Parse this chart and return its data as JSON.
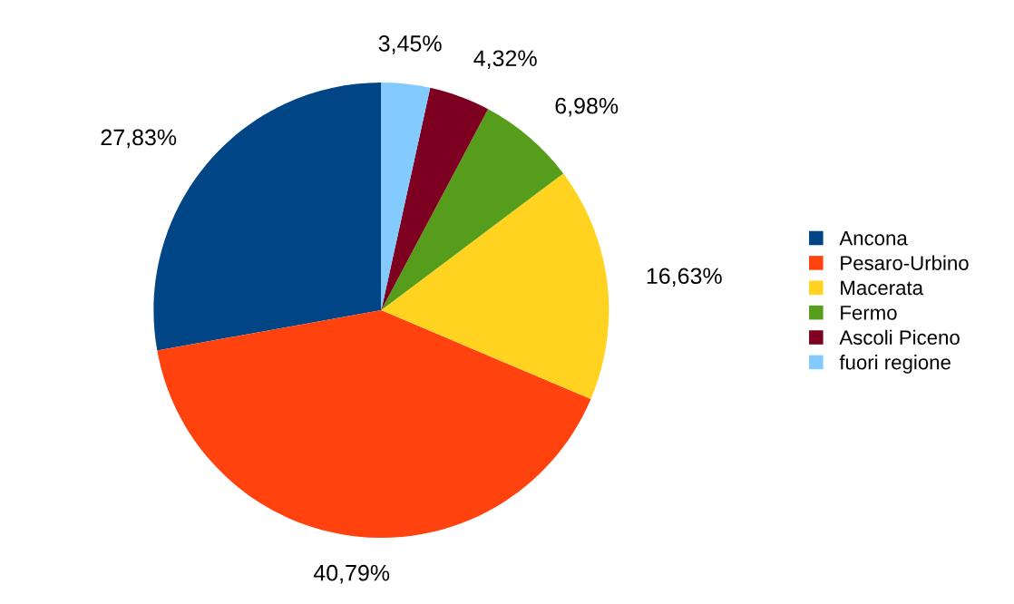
{
  "chart_data": {
    "type": "pie",
    "categories": [
      "Ancona",
      "Pesaro-Urbino",
      "Macerata",
      "Fermo",
      "Ascoli Piceno",
      "fuori regione"
    ],
    "values": [
      27.83,
      40.79,
      16.63,
      6.98,
      4.32,
      3.45
    ],
    "colors": [
      "#004586",
      "#ff420e",
      "#ffd320",
      "#579d1c",
      "#7e0021",
      "#83caff"
    ],
    "value_labels": [
      "27,83%",
      "40,79%",
      "16,63%",
      "6,98%",
      "4,32%",
      "3,45%"
    ],
    "legend": "right"
  }
}
